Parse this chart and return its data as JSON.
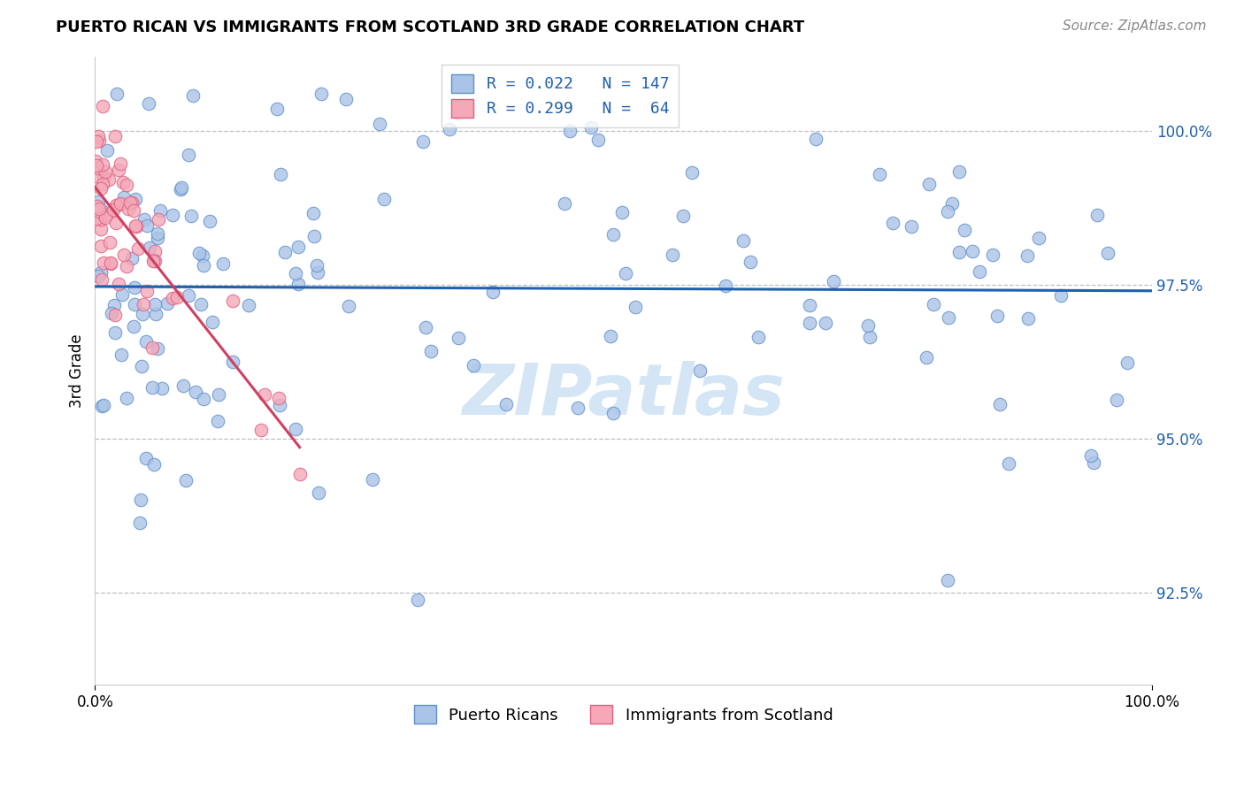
{
  "title": "PUERTO RICAN VS IMMIGRANTS FROM SCOTLAND 3RD GRADE CORRELATION CHART",
  "source": "Source: ZipAtlas.com",
  "ylabel": "3rd Grade",
  "ylabel_ticks": [
    "92.5%",
    "95.0%",
    "97.5%",
    "100.0%"
  ],
  "ylabel_values": [
    92.5,
    95.0,
    97.5,
    100.0
  ],
  "xmin": 0.0,
  "xmax": 100.0,
  "ymin": 91.0,
  "ymax": 101.2,
  "blue_R": 0.022,
  "blue_N": 147,
  "pink_R": 0.299,
  "pink_N": 64,
  "blue_color": "#aac4e8",
  "pink_color": "#f4a8b8",
  "blue_edge_color": "#6090c8",
  "pink_edge_color": "#e06080",
  "blue_trend_color": "#2060b0",
  "pink_trend_color": "#d04060",
  "watermark_color": "#d0e4f4",
  "watermark": "ZIPatlas",
  "legend_blue_label": "Puerto Ricans",
  "legend_pink_label": "Immigrants from Scotland",
  "legend_text_color": "#2060b0",
  "ytick_color": "#2060b0",
  "title_fontsize": 13,
  "source_fontsize": 11,
  "tick_fontsize": 12
}
